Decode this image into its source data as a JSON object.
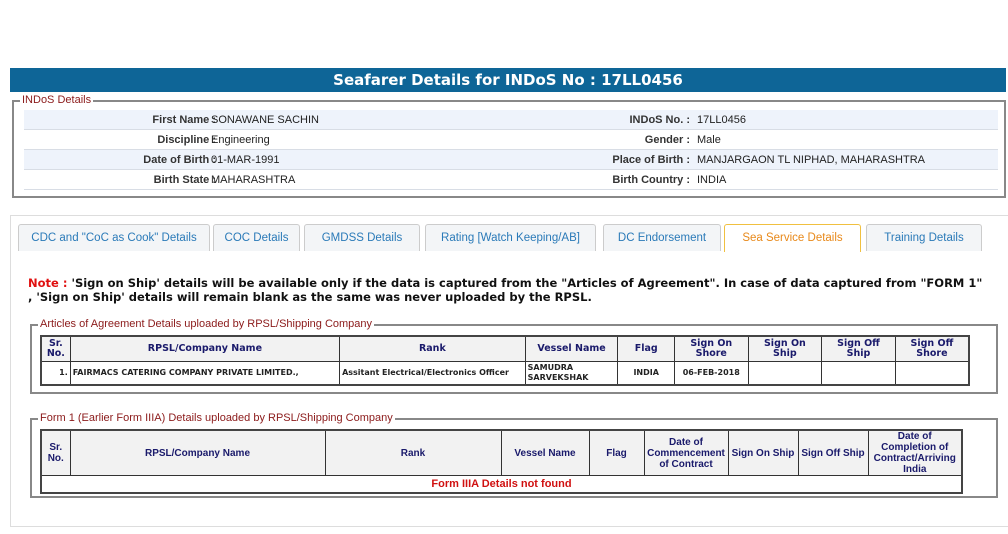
{
  "header": {
    "title": "Seafarer Details for INDoS No : 17LL0456"
  },
  "indos": {
    "legend": "INDoS Details",
    "rows": [
      {
        "l1": "First Name :",
        "v1": "SONAWANE SACHIN",
        "l2": "INDoS No. :",
        "v2": "17LL0456"
      },
      {
        "l1": "Discipline :",
        "v1": "Engineering",
        "l2": "Gender :",
        "v2": "Male"
      },
      {
        "l1": "Date of Birth :",
        "v1": "01-MAR-1991",
        "l2": "Place of Birth :",
        "v2": "MANJARGAON TL NIPHAD, MAHARASHTRA"
      },
      {
        "l1": "Birth State :",
        "v1": "MAHARASHTRA",
        "l2": "Birth Country :",
        "v2": "INDIA"
      }
    ]
  },
  "tabs": [
    {
      "label": "CDC and \"CoC as Cook\" Details"
    },
    {
      "label": "COC Details"
    },
    {
      "label": "GMDSS Details"
    },
    {
      "label": "Rating [Watch Keeping/AB]"
    },
    {
      "label": "DC Endorsement"
    },
    {
      "label": "Sea Service Details",
      "active": true
    },
    {
      "label": "Training Details"
    }
  ],
  "note": {
    "prefix": "Note :",
    "text": " 'Sign on Ship' details will be available only if the data is captured from the \"Articles of Agreement\". In case of data captured from \"FORM 1\" , 'Sign on Ship' details will remain blank as the same was never uploaded by the RPSL."
  },
  "articles": {
    "legend": "Articles of Agreement Details uploaded by RPSL/Shipping Company",
    "headers": [
      "Sr. No.",
      "RPSL/Company Name",
      "Rank",
      "Vessel Name",
      "Flag",
      "Sign On Shore",
      "Sign On Ship",
      "Sign Off Ship",
      "Sign Off Shore"
    ],
    "rows": [
      [
        "1.",
        "FAIRMACS CATERING COMPANY PRIVATE LIMITED.,",
        "Assitant Electrical/Electronics Officer",
        "SAMUDRA SARVEKSHAK",
        "INDIA",
        "06-FEB-2018",
        "",
        "",
        ""
      ]
    ]
  },
  "form1": {
    "legend": "Form 1 (Earlier Form IIIA) Details uploaded by RPSL/Shipping Company",
    "headers": [
      "Sr. No.",
      "RPSL/Company Name",
      "Rank",
      "Vessel Name",
      "Flag",
      "Date of Commencement of Contract",
      "Sign On Ship",
      "Sign Off Ship",
      "Date of Completion of Contract/Arriving India"
    ],
    "empty_message": "Form IIIA Details not found"
  },
  "colors": {
    "header": "#0e6597",
    "active_tab": "#e8891a",
    "tab_text": "#2a7ab8",
    "legend": "#8b1a1a",
    "error": "#d01010"
  }
}
